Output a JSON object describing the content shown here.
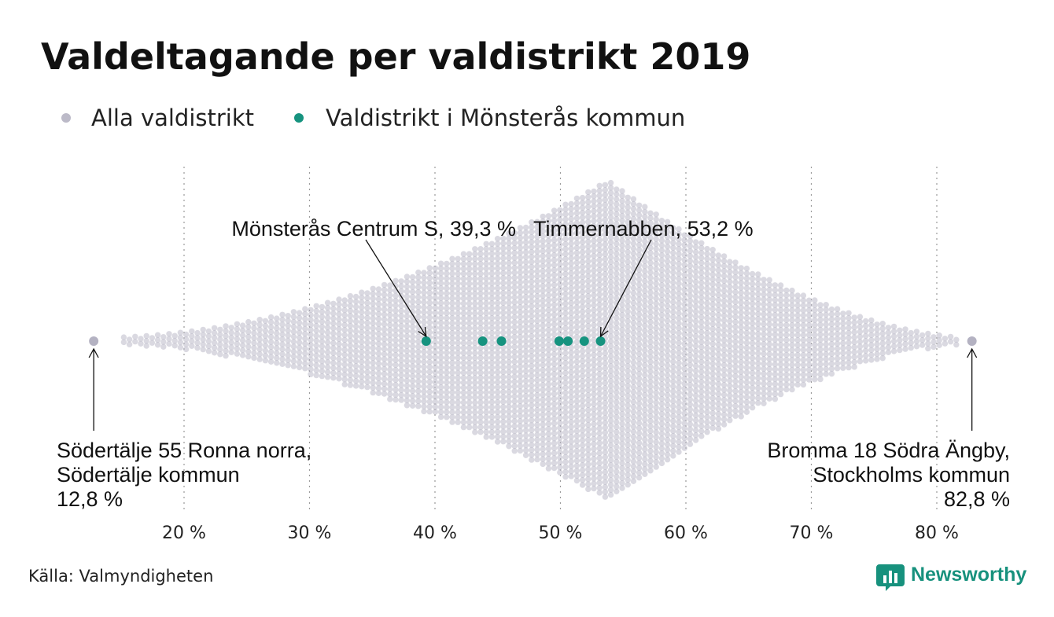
{
  "chart_data": {
    "type": "scatter",
    "subtype": "beeswarm",
    "title": "Valdeltagande per valdistrikt 2019",
    "legend": [
      {
        "label": "Alla valdistrikt",
        "color": "#bcbac8"
      },
      {
        "label": "Valdistrikt i Mönsterås kommun",
        "color": "#16937f"
      }
    ],
    "x_ticks": [
      20,
      30,
      40,
      50,
      60,
      70,
      80
    ],
    "x_tick_labels": [
      "20 %",
      "30 %",
      "40 %",
      "50 %",
      "60 %",
      "70 %",
      "80 %"
    ],
    "xlim": [
      12.8,
      82.8
    ],
    "grid": "vertical dotted",
    "distribution": {
      "min": 12.8,
      "max": 82.8,
      "peak": 53.8,
      "color": "#bcbac8"
    },
    "series": [
      {
        "name": "Valdistrikt i Mönsterås kommun",
        "color": "#16937f",
        "values": [
          39.3,
          43.8,
          45.3,
          49.9,
          50.6,
          51.9,
          53.2
        ]
      }
    ],
    "extremes": [
      {
        "value": 12.8,
        "label_lines": [
          "Södertälje 55 Ronna norra,",
          "Södertälje kommun",
          "12,8 %"
        ],
        "align": "left"
      },
      {
        "value": 82.8,
        "label_lines": [
          "Bromma 18 Södra Ängby,",
          "Stockholms kommun",
          "82,8 %"
        ],
        "align": "right"
      }
    ],
    "annotations": [
      {
        "value": 39.3,
        "text": "Mönsterås Centrum S, 39,3 %"
      },
      {
        "value": 53.2,
        "text": "Timmernabben, 53,2 %"
      }
    ]
  },
  "source": "Källa: Valmyndigheten",
  "brand": {
    "name": "Newsworthy",
    "icon": "bar-chart-speech-bubble-icon"
  }
}
